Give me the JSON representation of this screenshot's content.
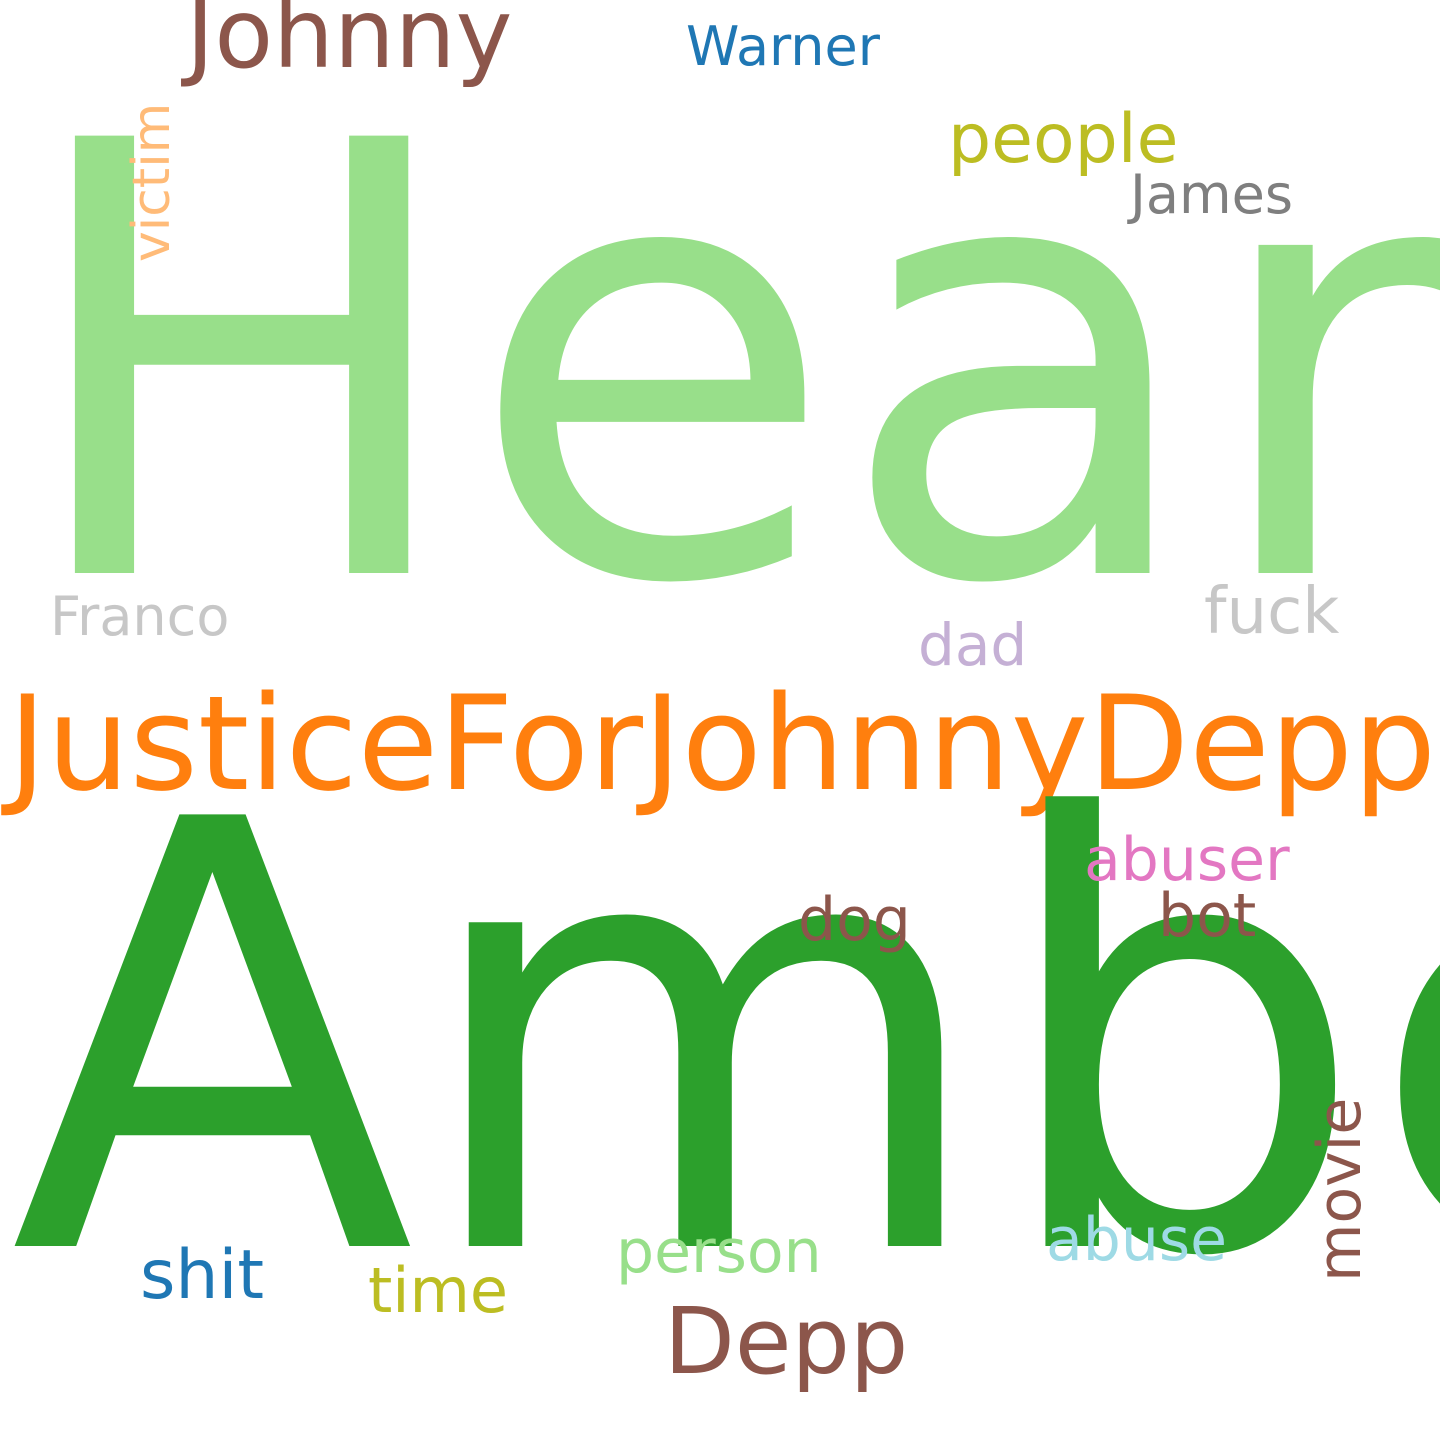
{
  "wordcloud": {
    "background": "#ffffff",
    "words": [
      {
        "key": "heard",
        "text": "Heard",
        "color": "#98df8a"
      },
      {
        "key": "amber",
        "text": "Amber",
        "color": "#2ca02c"
      },
      {
        "key": "justice",
        "text": "JusticeForJohnnyDepp",
        "color": "#ff7f0e"
      },
      {
        "key": "johnny",
        "text": "Johnny",
        "color": "#8c564b"
      },
      {
        "key": "depp",
        "text": "Depp",
        "color": "#8c564b"
      },
      {
        "key": "people",
        "text": "people",
        "color": "#bcbd22"
      },
      {
        "key": "james",
        "text": "James",
        "color": "#7f7f7f"
      },
      {
        "key": "warner",
        "text": "Warner",
        "color": "#1f77b4"
      },
      {
        "key": "victim",
        "text": "victim",
        "color": "#ffbb78",
        "orientation": "vertical"
      },
      {
        "key": "franco",
        "text": "Franco",
        "color": "#c7c7c7"
      },
      {
        "key": "fuck",
        "text": "fuck",
        "color": "#c7c7c7"
      },
      {
        "key": "dad",
        "text": "dad",
        "color": "#c5b0d5"
      },
      {
        "key": "abuser",
        "text": "abuser",
        "color": "#e377c2"
      },
      {
        "key": "dog",
        "text": "dog",
        "color": "#8c564b"
      },
      {
        "key": "bot",
        "text": "bot",
        "color": "#8c564b"
      },
      {
        "key": "movie",
        "text": "movie",
        "color": "#8c564b",
        "orientation": "vertical"
      },
      {
        "key": "abuse",
        "text": "abuse",
        "color": "#9edae5"
      },
      {
        "key": "person",
        "text": "person",
        "color": "#98df8a"
      },
      {
        "key": "shit",
        "text": "shit",
        "color": "#1f77b4"
      },
      {
        "key": "time",
        "text": "time",
        "color": "#bcbd22"
      }
    ]
  }
}
